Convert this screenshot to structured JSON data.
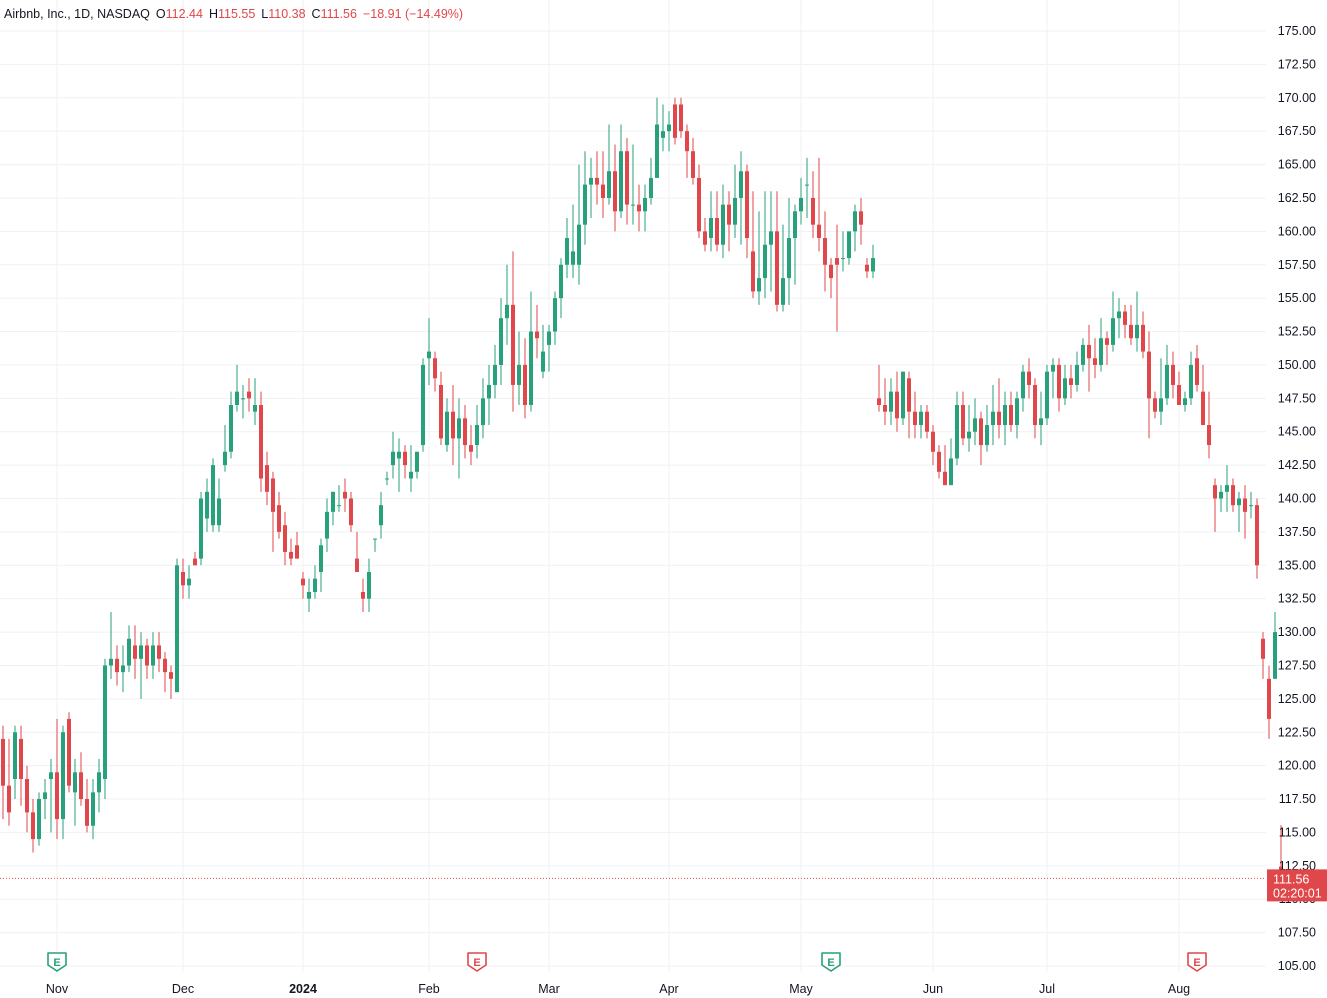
{
  "legend": {
    "symbol": "Airbnb, Inc., 1D, NASDAQ",
    "open_label": "O",
    "open": "112.44",
    "high_label": "H",
    "high": "115.55",
    "low_label": "L",
    "low": "110.38",
    "close_label": "C",
    "close": "111.56",
    "change": "−18.91 (−14.49%)"
  },
  "price_tag": {
    "price": "111.56",
    "countdown": "02:20:01"
  },
  "colors": {
    "up": "#26a17b",
    "down": "#e0474a",
    "grid": "#f0f1f3",
    "axis_text": "#131722",
    "earnings": "#26a17b",
    "earnings_upcoming": "#e0474a"
  },
  "chart_data": {
    "type": "candlestick",
    "title": "Airbnb, Inc., 1D, NASDAQ",
    "ylim": [
      104.5,
      176.5
    ],
    "y_ticks": [
      "175.00",
      "172.50",
      "170.00",
      "167.50",
      "165.00",
      "162.50",
      "160.00",
      "157.50",
      "155.00",
      "152.50",
      "150.00",
      "147.50",
      "145.00",
      "142.50",
      "140.00",
      "137.50",
      "135.00",
      "132.50",
      "130.00",
      "127.50",
      "125.00",
      "122.50",
      "120.00",
      "117.50",
      "115.00",
      "112.50",
      "110.00",
      "107.50",
      "105.00"
    ],
    "x_ticks": [
      {
        "label": "Nov",
        "i": 9
      },
      {
        "label": "Dec",
        "i": 30
      },
      {
        "label": "2024",
        "i": 50
      },
      {
        "label": "Feb",
        "i": 71
      },
      {
        "label": "Mar",
        "i": 91
      },
      {
        "label": "Apr",
        "i": 111
      },
      {
        "label": "May",
        "i": 133
      },
      {
        "label": "Jun",
        "i": 155
      },
      {
        "label": "Jul",
        "i": 174
      },
      {
        "label": "Aug",
        "i": 196
      }
    ],
    "earnings_markers": [
      {
        "i": 9,
        "label": "E",
        "upcoming": false
      },
      {
        "i": 79,
        "label": "E",
        "upcoming": true
      },
      {
        "i": 138,
        "label": "E",
        "upcoming": false
      },
      {
        "i": 199,
        "label": "E",
        "upcoming": true
      }
    ],
    "candles": [
      [
        122.0,
        123.0,
        116.0,
        118.5
      ],
      [
        118.5,
        122.0,
        115.5,
        116.5
      ],
      [
        119.0,
        123.0,
        117.5,
        122.5
      ],
      [
        122.0,
        123.0,
        117.0,
        119.0
      ],
      [
        119.0,
        120.0,
        115.0,
        116.5
      ],
      [
        116.5,
        117.5,
        113.5,
        114.5
      ],
      [
        114.5,
        118.0,
        114.0,
        117.5
      ],
      [
        117.5,
        119.0,
        116.0,
        118.0
      ],
      [
        119.0,
        120.5,
        115.0,
        119.5
      ],
      [
        119.5,
        123.5,
        114.5,
        116.0
      ],
      [
        116.0,
        123.0,
        114.5,
        122.5
      ],
      [
        123.5,
        124.0,
        118.0,
        118.5
      ],
      [
        118.0,
        120.5,
        115.5,
        119.5
      ],
      [
        119.5,
        121.0,
        117.0,
        117.5
      ],
      [
        117.5,
        119.0,
        115.0,
        115.5
      ],
      [
        115.5,
        119.0,
        114.5,
        118.0
      ],
      [
        118.0,
        120.5,
        116.5,
        119.5
      ],
      [
        119.0,
        128.0,
        117.5,
        127.5
      ],
      [
        127.5,
        131.5,
        126.5,
        128.0
      ],
      [
        128.0,
        129.0,
        126.0,
        127.0
      ],
      [
        127.0,
        129.0,
        125.5,
        127.5
      ],
      [
        127.5,
        130.5,
        127.0,
        129.5
      ],
      [
        129.0,
        130.5,
        126.5,
        128.0
      ],
      [
        128.0,
        130.0,
        125.0,
        129.0
      ],
      [
        129.0,
        129.5,
        126.5,
        127.5
      ],
      [
        127.5,
        130.0,
        126.5,
        129.0
      ],
      [
        129.0,
        130.0,
        127.0,
        128.0
      ],
      [
        128.0,
        128.5,
        125.5,
        127.0
      ],
      [
        127.0,
        127.5,
        125.0,
        126.5
      ],
      [
        125.5,
        135.5,
        125.5,
        135.0
      ],
      [
        134.5,
        135.5,
        132.5,
        133.5
      ],
      [
        133.5,
        135.0,
        132.5,
        134.0
      ],
      [
        135.5,
        136.0,
        135.0,
        135.0
      ],
      [
        135.5,
        140.5,
        135.0,
        140.0
      ],
      [
        138.5,
        141.5,
        137.5,
        140.5
      ],
      [
        138.0,
        143.0,
        137.5,
        142.5
      ],
      [
        138.0,
        141.5,
        137.5,
        140.0
      ],
      [
        142.5,
        145.5,
        142.0,
        143.5
      ],
      [
        143.5,
        148.0,
        143.0,
        147.0
      ],
      [
        147.0,
        150.0,
        146.5,
        148.0
      ],
      [
        147.5,
        148.5,
        146.0,
        147.5
      ],
      [
        148.0,
        149.0,
        146.5,
        147.5
      ],
      [
        146.5,
        149.0,
        145.5,
        147.0
      ],
      [
        147.0,
        148.0,
        140.5,
        141.5
      ],
      [
        142.5,
        143.5,
        139.5,
        140.5
      ],
      [
        141.5,
        142.0,
        136.0,
        139.0
      ],
      [
        139.5,
        140.5,
        137.0,
        137.5
      ],
      [
        138.0,
        139.0,
        135.0,
        136.0
      ],
      [
        136.0,
        137.0,
        135.0,
        135.5
      ],
      [
        136.5,
        137.5,
        135.5,
        135.5
      ],
      [
        134.0,
        134.5,
        132.5,
        133.5
      ],
      [
        132.5,
        134.0,
        131.5,
        133.0
      ],
      [
        133.0,
        135.0,
        132.5,
        134.0
      ],
      [
        134.5,
        137.0,
        133.0,
        136.5
      ],
      [
        137.0,
        140.0,
        136.0,
        139.0
      ],
      [
        139.0,
        140.5,
        138.0,
        140.5
      ],
      [
        139.5,
        141.0,
        139.0,
        139.5
      ],
      [
        140.5,
        141.5,
        139.0,
        140.0
      ],
      [
        140.0,
        140.5,
        137.5,
        138.0
      ],
      [
        135.5,
        137.5,
        134.5,
        134.5
      ],
      [
        133.0,
        134.0,
        131.5,
        132.5
      ],
      [
        132.5,
        135.5,
        131.5,
        134.5
      ],
      [
        137.0,
        137.0,
        136.0,
        137.0
      ],
      [
        138.0,
        140.5,
        137.0,
        139.5
      ],
      [
        141.5,
        142.0,
        141.0,
        141.5
      ],
      [
        142.5,
        145.0,
        141.5,
        143.5
      ],
      [
        143.0,
        144.5,
        140.5,
        143.5
      ],
      [
        143.5,
        144.0,
        141.5,
        142.5
      ],
      [
        141.5,
        144.0,
        140.5,
        142.0
      ],
      [
        142.0,
        143.5,
        141.5,
        143.5
      ],
      [
        144.0,
        150.5,
        143.5,
        150.0
      ],
      [
        150.5,
        153.5,
        148.5,
        151.0
      ],
      [
        150.5,
        151.0,
        148.0,
        149.0
      ],
      [
        148.5,
        149.5,
        144.0,
        144.5
      ],
      [
        144.0,
        147.5,
        143.5,
        146.5
      ],
      [
        146.5,
        148.5,
        142.5,
        144.5
      ],
      [
        144.5,
        147.5,
        141.5,
        146.0
      ],
      [
        146.0,
        147.0,
        143.0,
        144.0
      ],
      [
        144.0,
        145.5,
        142.5,
        143.5
      ],
      [
        144.0,
        147.0,
        143.0,
        145.5
      ],
      [
        145.5,
        149.0,
        144.5,
        147.5
      ],
      [
        147.5,
        150.0,
        145.5,
        148.5
      ],
      [
        148.5,
        151.5,
        147.5,
        150.0
      ],
      [
        150.0,
        155.0,
        148.5,
        153.5
      ],
      [
        153.5,
        157.5,
        151.5,
        154.5
      ],
      [
        154.5,
        158.5,
        146.5,
        148.5
      ],
      [
        148.5,
        152.5,
        147.0,
        150.0
      ],
      [
        150.0,
        152.0,
        146.0,
        147.0
      ],
      [
        147.0,
        155.5,
        146.5,
        152.5
      ],
      [
        152.5,
        154.5,
        150.5,
        152.0
      ],
      [
        149.5,
        153.0,
        149.0,
        151.0
      ],
      [
        151.5,
        153.0,
        149.5,
        152.5
      ],
      [
        152.5,
        155.5,
        151.5,
        155.0
      ],
      [
        155.0,
        158.0,
        153.5,
        157.5
      ],
      [
        157.5,
        161.0,
        156.5,
        159.5
      ],
      [
        157.5,
        162.0,
        156.5,
        158.5
      ],
      [
        157.5,
        165.0,
        156.0,
        160.5
      ],
      [
        160.5,
        166.0,
        159.0,
        163.5
      ],
      [
        163.5,
        165.5,
        161.0,
        164.0
      ],
      [
        164.0,
        166.0,
        162.0,
        163.5
      ],
      [
        163.5,
        166.0,
        161.0,
        162.5
      ],
      [
        162.5,
        168.0,
        162.0,
        164.5
      ],
      [
        164.5,
        166.5,
        160.0,
        161.5
      ],
      [
        161.5,
        168.0,
        161.0,
        166.0
      ],
      [
        166.0,
        167.0,
        160.5,
        162.0
      ],
      [
        162.0,
        166.5,
        160.5,
        162.0
      ],
      [
        162.0,
        163.5,
        160.0,
        161.5
      ],
      [
        161.5,
        163.5,
        160.0,
        162.5
      ],
      [
        162.5,
        165.5,
        162.0,
        164.0
      ],
      [
        164.0,
        170.0,
        164.0,
        168.0
      ],
      [
        167.0,
        169.5,
        166.0,
        167.5
      ],
      [
        167.5,
        169.0,
        166.0,
        168.0
      ],
      [
        169.5,
        170.0,
        166.5,
        167.0
      ],
      [
        169.5,
        170.0,
        167.0,
        167.5
      ],
      [
        167.5,
        168.0,
        164.0,
        166.0
      ],
      [
        166.0,
        167.0,
        163.5,
        164.0
      ],
      [
        164.0,
        165.0,
        159.5,
        160.0
      ],
      [
        160.0,
        161.0,
        158.5,
        159.0
      ],
      [
        159.5,
        163.0,
        158.5,
        161.0
      ],
      [
        161.0,
        163.0,
        158.5,
        159.0
      ],
      [
        159.0,
        163.5,
        158.0,
        162.0
      ],
      [
        162.0,
        163.0,
        158.5,
        160.5
      ],
      [
        160.5,
        165.0,
        159.5,
        162.5
      ],
      [
        162.5,
        166.0,
        159.0,
        164.5
      ],
      [
        164.5,
        165.0,
        158.0,
        159.5
      ],
      [
        158.5,
        163.0,
        155.0,
        155.5
      ],
      [
        155.5,
        161.5,
        154.5,
        156.5
      ],
      [
        156.5,
        163.0,
        155.0,
        159.0
      ],
      [
        159.0,
        163.0,
        155.5,
        160.0
      ],
      [
        160.0,
        163.0,
        154.0,
        154.5
      ],
      [
        154.5,
        160.5,
        154.0,
        156.5
      ],
      [
        156.5,
        162.5,
        154.5,
        159.5
      ],
      [
        159.5,
        162.0,
        156.0,
        161.5
      ],
      [
        161.5,
        164.0,
        160.5,
        162.5
      ],
      [
        163.5,
        165.5,
        161.0,
        163.5
      ],
      [
        162.5,
        164.5,
        159.5,
        160.5
      ],
      [
        160.5,
        165.5,
        158.5,
        159.5
      ],
      [
        159.5,
        161.5,
        155.5,
        157.5
      ],
      [
        157.5,
        158.0,
        155.0,
        156.5
      ],
      [
        158.0,
        160.5,
        152.5,
        157.5
      ],
      [
        158.0,
        160.0,
        157.0,
        158.0
      ],
      [
        158.0,
        160.0,
        157.5,
        160.0
      ],
      [
        160.0,
        162.0,
        158.5,
        161.5
      ],
      [
        161.5,
        162.5,
        159.0,
        160.5
      ],
      [
        157.5,
        158.0,
        156.5,
        157.0
      ],
      [
        157.0,
        159.0,
        156.5,
        158.0
      ],
      [
        147.5,
        150.0,
        146.5,
        147.0
      ],
      [
        147.0,
        149.0,
        145.5,
        146.5
      ],
      [
        146.5,
        149.0,
        145.5,
        148.0
      ],
      [
        148.0,
        149.5,
        145.0,
        146.0
      ],
      [
        146.0,
        149.5,
        145.5,
        149.5
      ],
      [
        149.0,
        149.5,
        144.5,
        146.5
      ],
      [
        146.5,
        148.0,
        144.5,
        145.5
      ],
      [
        145.5,
        147.0,
        144.5,
        146.5
      ],
      [
        146.5,
        147.0,
        144.5,
        145.0
      ],
      [
        145.0,
        145.5,
        142.5,
        143.5
      ],
      [
        143.5,
        144.0,
        141.5,
        142.0
      ],
      [
        142.0,
        144.0,
        141.0,
        141.0
      ],
      [
        141.0,
        144.5,
        141.0,
        143.0
      ],
      [
        143.0,
        148.0,
        142.5,
        147.0
      ],
      [
        147.0,
        148.0,
        144.0,
        144.5
      ],
      [
        144.5,
        147.0,
        143.5,
        145.0
      ],
      [
        145.0,
        147.5,
        144.0,
        146.0
      ],
      [
        146.0,
        146.5,
        142.5,
        144.0
      ],
      [
        144.0,
        147.0,
        143.5,
        145.5
      ],
      [
        145.5,
        148.5,
        144.0,
        146.5
      ],
      [
        146.5,
        149.0,
        144.5,
        145.5
      ],
      [
        145.5,
        148.0,
        144.0,
        147.0
      ],
      [
        147.0,
        148.0,
        145.0,
        145.5
      ],
      [
        145.5,
        148.0,
        144.5,
        147.5
      ],
      [
        147.5,
        150.0,
        146.5,
        149.5
      ],
      [
        149.5,
        150.5,
        147.5,
        148.5
      ],
      [
        148.5,
        149.0,
        144.5,
        145.5
      ],
      [
        145.5,
        148.0,
        144.0,
        146.0
      ],
      [
        146.0,
        150.0,
        145.5,
        149.5
      ],
      [
        149.5,
        150.5,
        147.5,
        150.0
      ],
      [
        150.0,
        150.5,
        146.5,
        147.5
      ],
      [
        147.5,
        150.0,
        147.0,
        149.0
      ],
      [
        149.0,
        150.0,
        147.5,
        148.5
      ],
      [
        148.5,
        151.0,
        148.0,
        150.0
      ],
      [
        150.0,
        152.0,
        149.5,
        151.5
      ],
      [
        151.5,
        153.0,
        148.0,
        150.5
      ],
      [
        150.5,
        152.0,
        149.0,
        150.0
      ],
      [
        150.0,
        153.5,
        149.5,
        152.0
      ],
      [
        152.0,
        152.5,
        150.0,
        151.5
      ],
      [
        151.5,
        155.5,
        151.0,
        153.5
      ],
      [
        153.5,
        155.0,
        152.0,
        154.0
      ],
      [
        154.0,
        154.5,
        152.0,
        153.0
      ],
      [
        153.0,
        154.5,
        151.5,
        152.0
      ],
      [
        152.0,
        155.5,
        151.0,
        153.0
      ],
      [
        153.0,
        154.0,
        150.5,
        151.0
      ],
      [
        151.0,
        152.5,
        144.5,
        147.5
      ],
      [
        147.5,
        148.0,
        146.0,
        146.5
      ],
      [
        146.5,
        150.5,
        145.5,
        147.5
      ],
      [
        147.5,
        151.5,
        147.0,
        150.0
      ],
      [
        150.0,
        151.0,
        147.5,
        148.5
      ],
      [
        148.5,
        149.5,
        147.0,
        147.0
      ],
      [
        147.0,
        148.0,
        146.5,
        147.5
      ],
      [
        147.5,
        151.0,
        147.0,
        150.0
      ],
      [
        150.5,
        151.5,
        148.0,
        148.5
      ],
      [
        148.0,
        150.0,
        145.5,
        145.5
      ],
      [
        145.5,
        148.0,
        143.0,
        144.0
      ],
      [
        141.0,
        141.5,
        137.5,
        140.0
      ],
      [
        140.0,
        141.0,
        139.0,
        140.5
      ],
      [
        140.5,
        142.5,
        139.0,
        141.0
      ],
      [
        141.0,
        141.5,
        139.0,
        139.5
      ],
      [
        139.5,
        140.5,
        137.5,
        140.0
      ],
      [
        140.0,
        141.0,
        137.0,
        139.0
      ],
      [
        139.5,
        140.5,
        138.5,
        139.5
      ],
      [
        139.5,
        140.0,
        134.0,
        135.0
      ],
      [
        129.5,
        130.0,
        126.5,
        128.0
      ],
      [
        126.5,
        127.5,
        122.0,
        123.5
      ],
      [
        126.5,
        131.5,
        126.5,
        130.0
      ],
      [
        112.44,
        115.55,
        110.38,
        111.56
      ]
    ]
  }
}
